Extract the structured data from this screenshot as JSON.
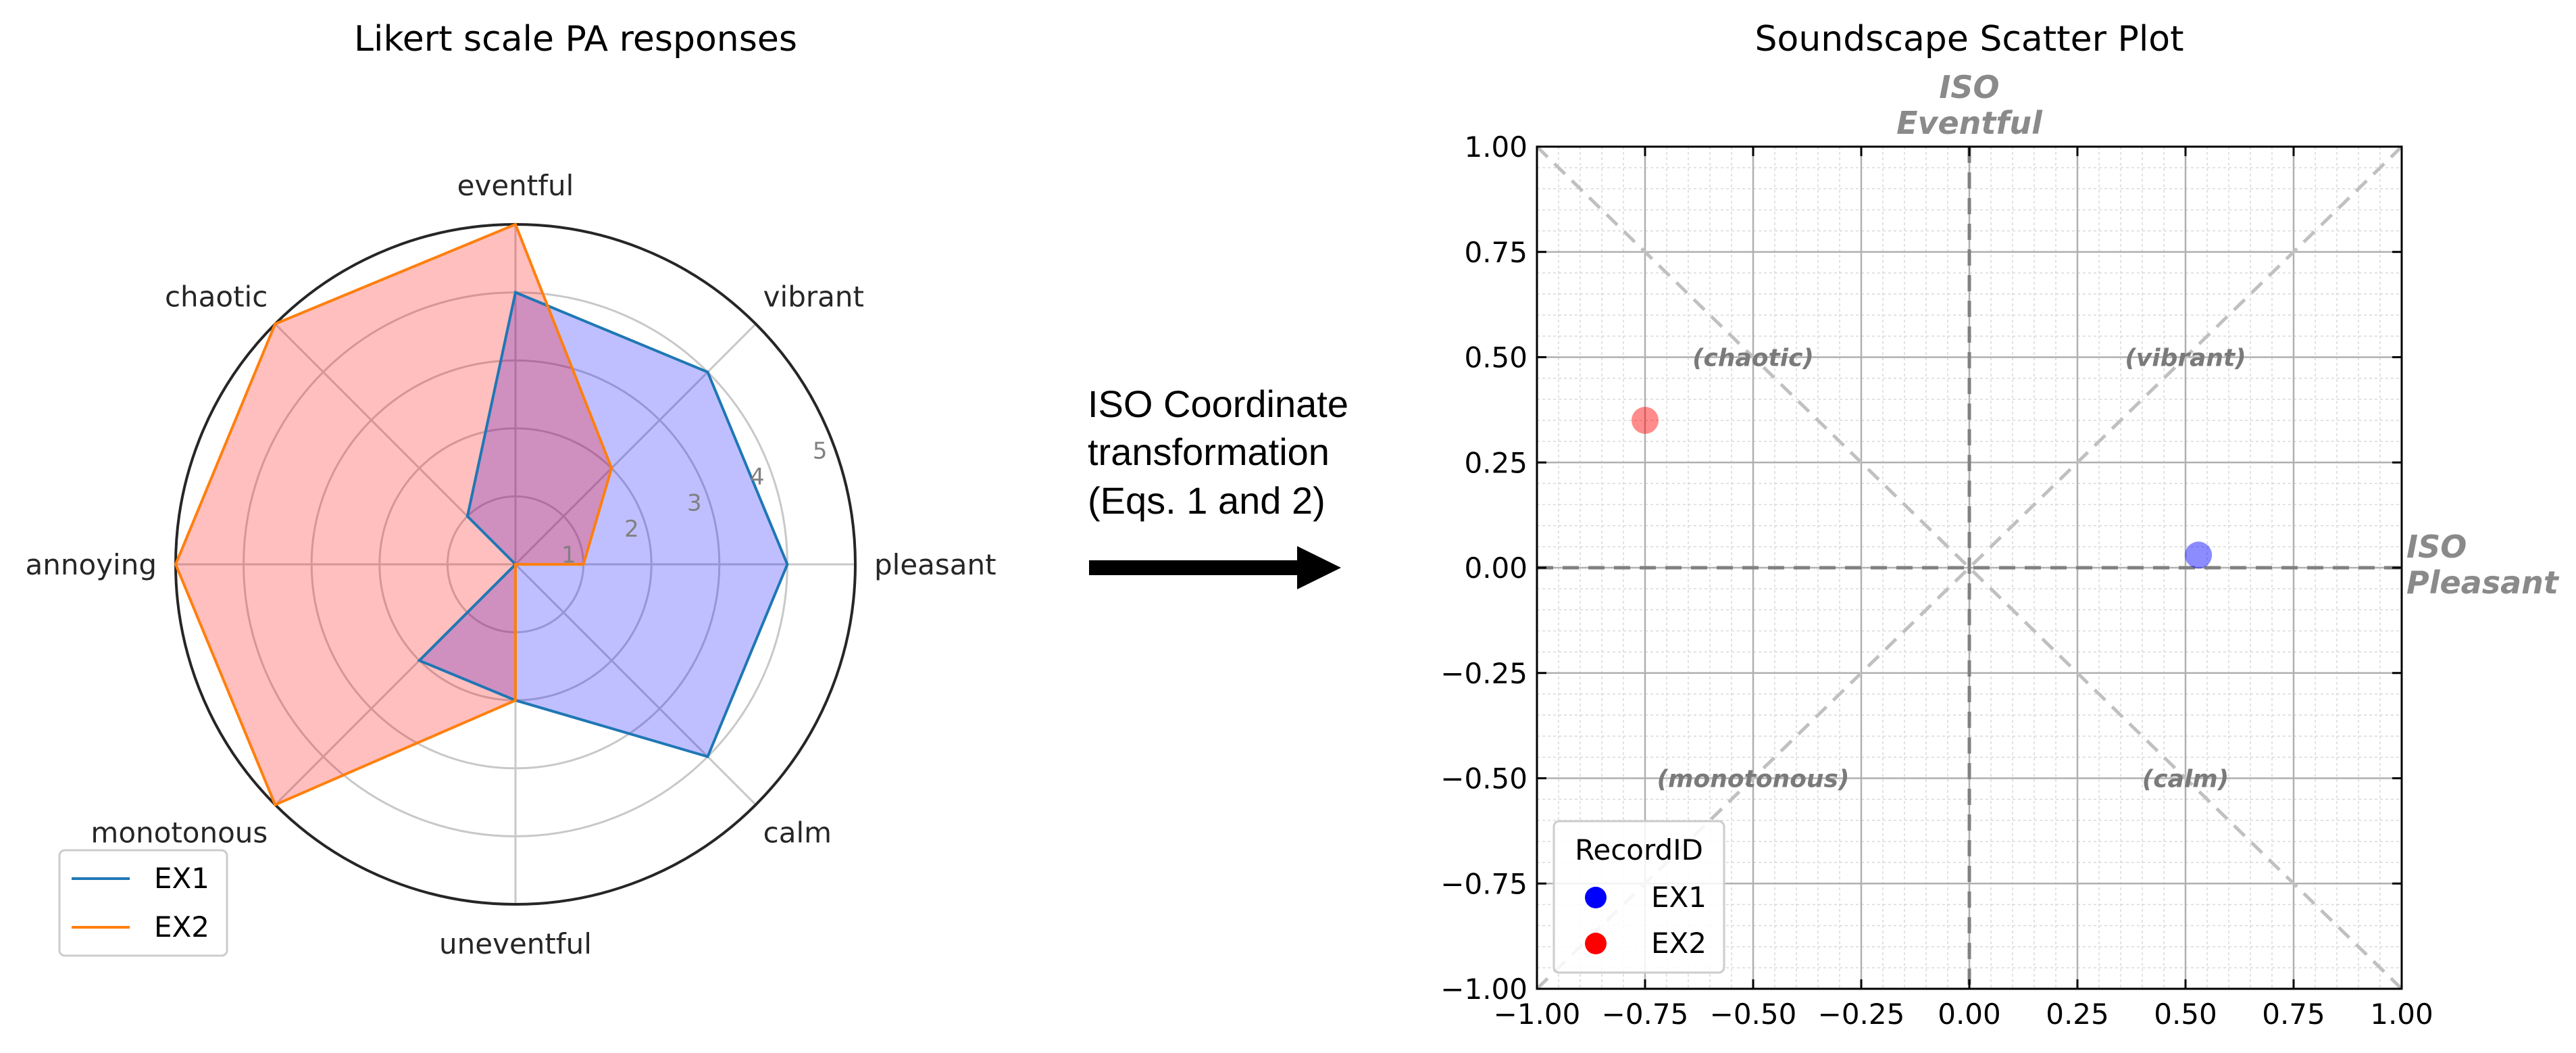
{
  "chart_data": [
    {
      "type": "radar",
      "title": "Likert scale PA responses",
      "categories": [
        "pleasant",
        "vibrant",
        "eventful",
        "chaotic",
        "annoying",
        "monotonous",
        "uneventful",
        "calm"
      ],
      "radial_ticks": [
        "1",
        "2",
        "3",
        "4",
        "5"
      ],
      "rlim": [
        0,
        5
      ],
      "series": [
        {
          "name": "EX1",
          "values": [
            4,
            4,
            4,
            1,
            0,
            2,
            2,
            4
          ],
          "line_color": "#1f77b4",
          "fill_color": "#0000ff"
        },
        {
          "name": "EX2",
          "values": [
            1,
            2,
            5,
            5,
            5,
            5,
            2,
            0
          ],
          "line_color": "#ff7f0e",
          "fill_color": "#ff0000"
        }
      ],
      "legend": "lower-left"
    },
    {
      "type": "scatter",
      "title": "Soundscape Scatter Plot",
      "xlim": [
        -1.0,
        1.0
      ],
      "ylim": [
        -1.0,
        1.0
      ],
      "x_ticks": [
        "−1.00",
        "−0.75",
        "−0.50",
        "−0.25",
        "0.00",
        "0.25",
        "0.50",
        "0.75",
        "1.00"
      ],
      "y_ticks": [
        "−1.00",
        "−0.75",
        "−0.50",
        "−0.25",
        "0.00",
        "0.25",
        "0.50",
        "0.75",
        "1.00"
      ],
      "grid": true,
      "x_axis_label": [
        "ISO",
        "Pleasant"
      ],
      "y_axis_label": [
        "ISO",
        "Eventful"
      ],
      "quadrants": {
        "top_left": "(chaotic)",
        "top_right": "(vibrant)",
        "bottom_left": "(monotonous)",
        "bottom_right": "(calm)"
      },
      "series": [
        {
          "name": "EX1",
          "x": [
            0.53
          ],
          "y": [
            0.03
          ],
          "color": "#0000ff"
        },
        {
          "name": "EX2",
          "x": [
            -0.75
          ],
          "y": [
            0.35
          ],
          "color": "#ff0000"
        }
      ],
      "legend": {
        "title": "RecordID",
        "placement": "lower-left"
      }
    }
  ],
  "transform": {
    "lines": [
      "ISO Coordinate",
      "transformation",
      "(Eqs. 1 and 2)"
    ]
  }
}
